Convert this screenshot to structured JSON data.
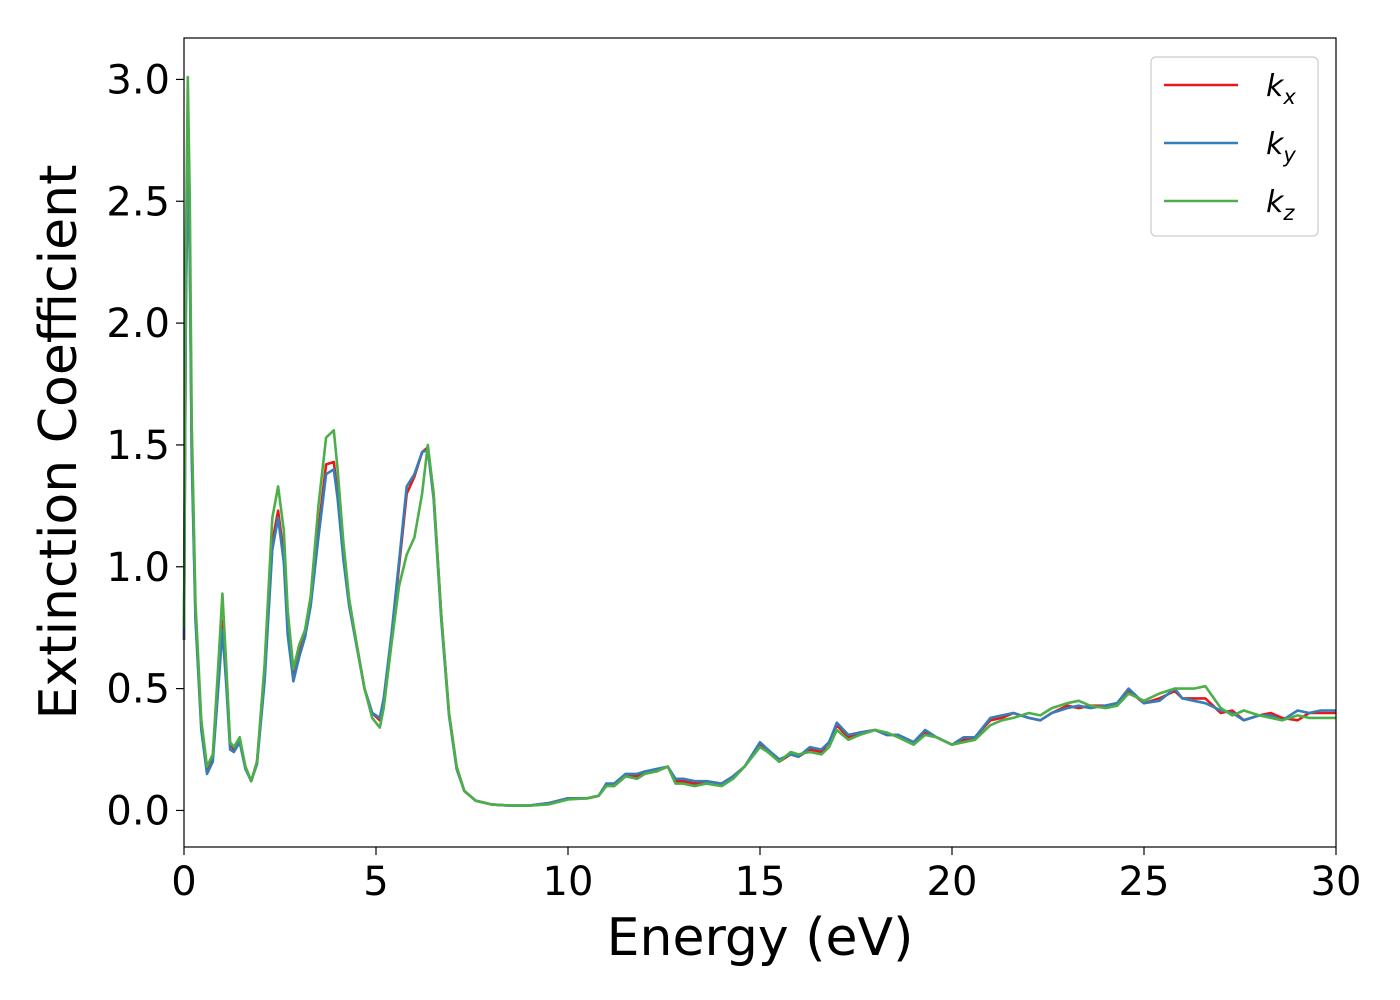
{
  "chart_data": {
    "type": "line",
    "title": "",
    "xlabel": "Energy (eV)",
    "ylabel": "Extinction Coefficient",
    "xlim": [
      0,
      30
    ],
    "ylim": [
      -0.15,
      3.17
    ],
    "xticks": [
      0,
      5,
      10,
      15,
      20,
      25,
      30
    ],
    "xtick_labels": [
      "0",
      "5",
      "10",
      "15",
      "20",
      "25",
      "30"
    ],
    "yticks": [
      0.0,
      0.5,
      1.0,
      1.5,
      2.0,
      2.5,
      3.0
    ],
    "ytick_labels": [
      "0.0",
      "0.5",
      "1.0",
      "1.5",
      "2.0",
      "2.5",
      "3.0"
    ],
    "grid": false,
    "legend_position": "top-right",
    "series": [
      {
        "name": "k",
        "subscript": "x",
        "color": "#e41a1c",
        "x": [
          0,
          0.05,
          0.1,
          0.15,
          0.2,
          0.3,
          0.45,
          0.6,
          0.75,
          0.9,
          1.0,
          1.1,
          1.2,
          1.3,
          1.45,
          1.6,
          1.75,
          1.9,
          2.1,
          2.3,
          2.45,
          2.6,
          2.7,
          2.85,
          3.0,
          3.15,
          3.3,
          3.5,
          3.7,
          3.9,
          4.0,
          4.15,
          4.3,
          4.5,
          4.7,
          4.9,
          5.1,
          5.2,
          5.4,
          5.6,
          5.8,
          6.0,
          6.2,
          6.35,
          6.5,
          6.7,
          6.9,
          7.1,
          7.3,
          7.6,
          8.0,
          8.5,
          9.0,
          9.5,
          10.0,
          10.5,
          10.8,
          11.0,
          11.2,
          11.5,
          11.8,
          12.0,
          12.3,
          12.6,
          12.8,
          13.0,
          13.3,
          13.6,
          14.0,
          14.3,
          14.6,
          15.0,
          15.2,
          15.5,
          15.8,
          16.0,
          16.3,
          16.6,
          16.8,
          17.0,
          17.3,
          17.6,
          18.0,
          18.3,
          18.6,
          19.0,
          19.3,
          19.6,
          20.0,
          20.3,
          20.6,
          21.0,
          21.3,
          21.6,
          22.0,
          22.3,
          22.6,
          23.0,
          23.3,
          23.6,
          24.0,
          24.3,
          24.6,
          25.0,
          25.4,
          25.8,
          26.0,
          26.3,
          26.6,
          27.0,
          27.3,
          27.6,
          28.0,
          28.3,
          28.6,
          29.0,
          29.3,
          29.6,
          30.0
        ],
        "y": [
          0.7,
          2.1,
          2.76,
          2.3,
          1.5,
          0.8,
          0.35,
          0.17,
          0.22,
          0.55,
          0.78,
          0.55,
          0.27,
          0.25,
          0.29,
          0.18,
          0.12,
          0.2,
          0.55,
          1.1,
          1.23,
          1.05,
          0.75,
          0.55,
          0.65,
          0.72,
          0.85,
          1.15,
          1.42,
          1.43,
          1.3,
          1.05,
          0.85,
          0.68,
          0.5,
          0.4,
          0.37,
          0.45,
          0.7,
          1.0,
          1.3,
          1.37,
          1.47,
          1.49,
          1.3,
          0.8,
          0.4,
          0.18,
          0.08,
          0.04,
          0.025,
          0.02,
          0.02,
          0.03,
          0.05,
          0.05,
          0.06,
          0.11,
          0.1,
          0.14,
          0.14,
          0.16,
          0.16,
          0.18,
          0.12,
          0.12,
          0.11,
          0.12,
          0.11,
          0.14,
          0.18,
          0.27,
          0.25,
          0.2,
          0.23,
          0.22,
          0.25,
          0.24,
          0.28,
          0.35,
          0.3,
          0.32,
          0.33,
          0.31,
          0.31,
          0.28,
          0.32,
          0.3,
          0.27,
          0.29,
          0.3,
          0.37,
          0.38,
          0.4,
          0.38,
          0.37,
          0.4,
          0.43,
          0.42,
          0.43,
          0.43,
          0.44,
          0.49,
          0.44,
          0.46,
          0.49,
          0.46,
          0.46,
          0.46,
          0.4,
          0.41,
          0.37,
          0.39,
          0.4,
          0.38,
          0.37,
          0.4,
          0.4,
          0.4
        ]
      },
      {
        "name": "k",
        "subscript": "y",
        "color": "#377eb8",
        "x": [
          0,
          0.05,
          0.1,
          0.15,
          0.2,
          0.3,
          0.45,
          0.6,
          0.75,
          0.9,
          1.0,
          1.1,
          1.2,
          1.3,
          1.45,
          1.6,
          1.75,
          1.9,
          2.1,
          2.3,
          2.45,
          2.6,
          2.7,
          2.85,
          3.0,
          3.15,
          3.3,
          3.5,
          3.7,
          3.9,
          4.0,
          4.15,
          4.3,
          4.5,
          4.7,
          4.9,
          5.1,
          5.2,
          5.4,
          5.6,
          5.8,
          6.0,
          6.2,
          6.35,
          6.5,
          6.7,
          6.9,
          7.1,
          7.3,
          7.6,
          8.0,
          8.5,
          9.0,
          9.5,
          10.0,
          10.5,
          10.8,
          11.0,
          11.2,
          11.5,
          11.8,
          12.0,
          12.3,
          12.6,
          12.8,
          13.0,
          13.3,
          13.6,
          14.0,
          14.3,
          14.6,
          15.0,
          15.2,
          15.5,
          15.8,
          16.0,
          16.3,
          16.6,
          16.8,
          17.0,
          17.3,
          17.6,
          18.0,
          18.3,
          18.6,
          19.0,
          19.3,
          19.6,
          20.0,
          20.3,
          20.6,
          21.0,
          21.3,
          21.6,
          22.0,
          22.3,
          22.6,
          23.0,
          23.3,
          23.6,
          24.0,
          24.3,
          24.6,
          25.0,
          25.4,
          25.8,
          26.0,
          26.3,
          26.6,
          27.0,
          27.3,
          27.6,
          28.0,
          28.3,
          28.6,
          29.0,
          29.3,
          29.6,
          30.0
        ],
        "y": [
          0.7,
          2.05,
          2.7,
          2.25,
          1.45,
          0.78,
          0.33,
          0.15,
          0.2,
          0.52,
          0.74,
          0.52,
          0.25,
          0.24,
          0.28,
          0.17,
          0.12,
          0.19,
          0.53,
          1.07,
          1.2,
          1.02,
          0.72,
          0.53,
          0.63,
          0.71,
          0.84,
          1.12,
          1.38,
          1.4,
          1.28,
          1.03,
          0.84,
          0.67,
          0.5,
          0.4,
          0.38,
          0.46,
          0.72,
          1.02,
          1.33,
          1.38,
          1.47,
          1.48,
          1.28,
          0.78,
          0.39,
          0.17,
          0.08,
          0.04,
          0.025,
          0.02,
          0.02,
          0.03,
          0.05,
          0.05,
          0.06,
          0.11,
          0.11,
          0.15,
          0.15,
          0.16,
          0.17,
          0.18,
          0.13,
          0.13,
          0.12,
          0.12,
          0.11,
          0.14,
          0.18,
          0.28,
          0.25,
          0.21,
          0.23,
          0.22,
          0.26,
          0.25,
          0.28,
          0.36,
          0.31,
          0.32,
          0.33,
          0.31,
          0.31,
          0.28,
          0.33,
          0.3,
          0.27,
          0.3,
          0.3,
          0.38,
          0.39,
          0.4,
          0.38,
          0.37,
          0.4,
          0.42,
          0.43,
          0.42,
          0.43,
          0.44,
          0.5,
          0.44,
          0.45,
          0.5,
          0.46,
          0.45,
          0.44,
          0.41,
          0.4,
          0.37,
          0.39,
          0.39,
          0.37,
          0.41,
          0.4,
          0.41,
          0.41
        ]
      },
      {
        "name": "k",
        "subscript": "z",
        "color": "#4daf4a",
        "x": [
          0,
          0.05,
          0.1,
          0.15,
          0.2,
          0.3,
          0.45,
          0.6,
          0.75,
          0.9,
          1.0,
          1.1,
          1.2,
          1.3,
          1.45,
          1.6,
          1.75,
          1.9,
          2.1,
          2.3,
          2.45,
          2.6,
          2.7,
          2.85,
          3.0,
          3.15,
          3.3,
          3.5,
          3.7,
          3.9,
          4.0,
          4.15,
          4.3,
          4.5,
          4.7,
          4.9,
          5.1,
          5.2,
          5.4,
          5.6,
          5.8,
          6.0,
          6.2,
          6.35,
          6.5,
          6.7,
          6.9,
          7.1,
          7.3,
          7.6,
          8.0,
          8.5,
          9.0,
          9.5,
          10.0,
          10.5,
          10.8,
          11.0,
          11.2,
          11.5,
          11.8,
          12.0,
          12.3,
          12.6,
          12.8,
          13.0,
          13.3,
          13.6,
          14.0,
          14.3,
          14.6,
          15.0,
          15.2,
          15.5,
          15.8,
          16.0,
          16.3,
          16.6,
          16.8,
          17.0,
          17.3,
          17.6,
          18.0,
          18.3,
          18.6,
          19.0,
          19.3,
          19.6,
          20.0,
          20.3,
          20.6,
          21.0,
          21.3,
          21.6,
          22.0,
          22.3,
          22.6,
          23.0,
          23.3,
          23.6,
          24.0,
          24.3,
          24.6,
          25.0,
          25.4,
          25.8,
          26.0,
          26.3,
          26.6,
          27.0,
          27.3,
          27.6,
          28.0,
          28.3,
          28.6,
          29.0,
          29.3,
          29.6,
          30.0
        ],
        "y": [
          0.75,
          2.3,
          3.01,
          2.5,
          1.6,
          0.85,
          0.37,
          0.18,
          0.23,
          0.62,
          0.89,
          0.6,
          0.28,
          0.26,
          0.3,
          0.18,
          0.12,
          0.2,
          0.6,
          1.2,
          1.33,
          1.15,
          0.82,
          0.58,
          0.68,
          0.74,
          0.88,
          1.25,
          1.53,
          1.56,
          1.4,
          1.1,
          0.87,
          0.68,
          0.5,
          0.38,
          0.34,
          0.42,
          0.68,
          0.92,
          1.05,
          1.12,
          1.3,
          1.5,
          1.3,
          0.8,
          0.4,
          0.18,
          0.08,
          0.04,
          0.025,
          0.02,
          0.02,
          0.025,
          0.045,
          0.05,
          0.06,
          0.1,
          0.1,
          0.14,
          0.13,
          0.15,
          0.16,
          0.18,
          0.11,
          0.11,
          0.1,
          0.11,
          0.1,
          0.13,
          0.18,
          0.26,
          0.24,
          0.2,
          0.24,
          0.23,
          0.24,
          0.23,
          0.26,
          0.33,
          0.29,
          0.31,
          0.33,
          0.32,
          0.3,
          0.27,
          0.31,
          0.3,
          0.27,
          0.28,
          0.29,
          0.35,
          0.37,
          0.38,
          0.4,
          0.39,
          0.42,
          0.44,
          0.45,
          0.43,
          0.42,
          0.43,
          0.48,
          0.45,
          0.48,
          0.5,
          0.5,
          0.5,
          0.51,
          0.42,
          0.39,
          0.41,
          0.39,
          0.38,
          0.37,
          0.39,
          0.38,
          0.38,
          0.38
        ]
      }
    ]
  }
}
